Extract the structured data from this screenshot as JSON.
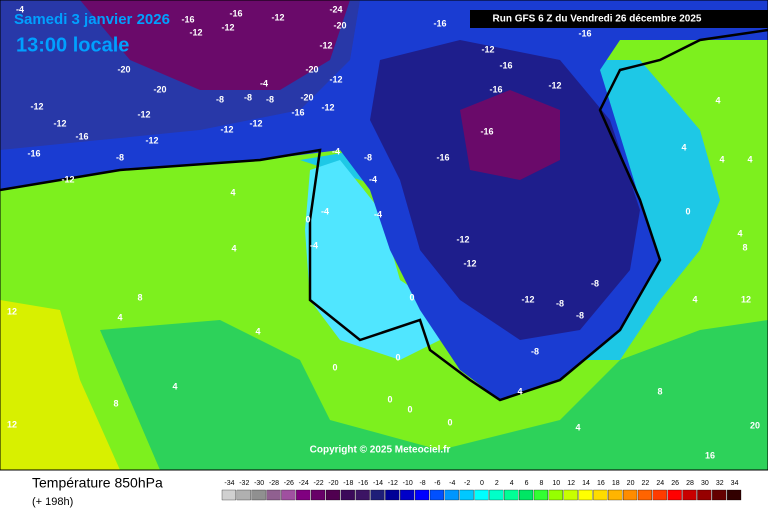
{
  "header": {
    "date": "Samedi 3 janvier 2026",
    "time": "13:00 locale",
    "run": "Run GFS 6 Z du Vendredi 26 décembre 2025"
  },
  "copyright": "Copyright © 2025 Meteociel.fr",
  "footer": {
    "title": "Température 850hPa",
    "lead": "(+ 198h)"
  },
  "scale": {
    "values": [
      -34,
      -32,
      -30,
      -28,
      -26,
      -24,
      -22,
      -20,
      -18,
      -16,
      -14,
      -12,
      -10,
      -8,
      -6,
      -4,
      -2,
      0,
      2,
      4,
      6,
      8,
      10,
      12,
      14,
      16,
      18,
      20,
      22,
      24,
      26,
      28,
      30,
      32,
      34
    ],
    "colors": [
      "#d0d0d0",
      "#b0b0b0",
      "#909090",
      "#906090",
      "#a050a0",
      "#800080",
      "#680068",
      "#500050",
      "#3c0a5a",
      "#3c1464",
      "#1e1e78",
      "#000096",
      "#0000c8",
      "#0000ff",
      "#0050ff",
      "#0096ff",
      "#00c8ff",
      "#00ffff",
      "#00ffc8",
      "#00ff96",
      "#00e664",
      "#32ff32",
      "#96ff00",
      "#c8ff00",
      "#ffff00",
      "#ffdc00",
      "#ffb400",
      "#ff8c00",
      "#ff6400",
      "#ff3c00",
      "#ff0000",
      "#c80000",
      "#960000",
      "#640000",
      "#320000"
    ]
  },
  "map_labels": [
    -4,
    -16,
    -16,
    -12,
    -24,
    -20,
    -16,
    -12,
    -12,
    -12,
    -12,
    -16,
    -16,
    -20,
    -20,
    -20,
    -12,
    -4,
    -8,
    -8,
    -8,
    -20,
    -12,
    -16,
    -12,
    -12,
    -12,
    -12,
    -12,
    -16,
    -12,
    -16,
    -8,
    -12,
    -16,
    -16,
    -12,
    -16,
    -4,
    -8,
    -4,
    -4,
    0,
    -4,
    -4,
    -12,
    -12,
    -12,
    -8,
    -8,
    -8,
    -8,
    4,
    4,
    8,
    4,
    4,
    4,
    8,
    4,
    4,
    4,
    4,
    0,
    4,
    8,
    12,
    12,
    12,
    0,
    0,
    0,
    0,
    0,
    0,
    4,
    4,
    16,
    20,
    4,
    8
  ]
}
